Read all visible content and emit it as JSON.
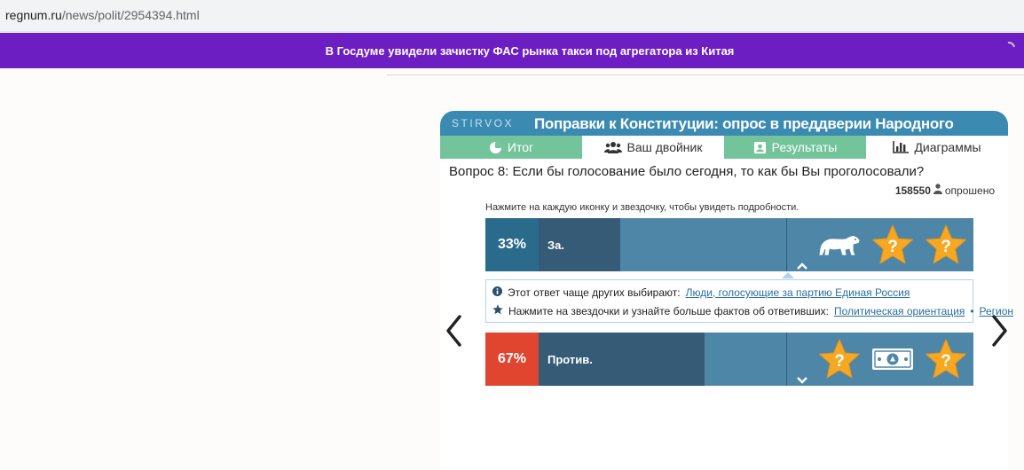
{
  "browser": {
    "url_host": "regnum.ru",
    "url_path": "/news/polit/2954394.html"
  },
  "ticker": {
    "text": "В Госдуме увидели зачистку ФАС рынка такси под агрегатора из Китая"
  },
  "widget": {
    "brand": "STIRVOX",
    "title": "Поправки к Конституции: опрос в преддверии Народного опроса",
    "tabs": [
      {
        "label": "Итог",
        "icon": "pie-chart-icon"
      },
      {
        "label": "Ваш двойник",
        "icon": "users-icon"
      },
      {
        "label": "Результаты",
        "icon": "id-card-icon"
      },
      {
        "label": "Диаграммы",
        "icon": "bar-chart-icon"
      }
    ],
    "question": "Вопрос 8: Если бы голосование было сегодня, то как бы Вы проголосовали?",
    "respondents": {
      "count": "158550",
      "label": "опрошено"
    },
    "hint": "Нажмите на каждую иконку и звездочку, чтобы увидеть подробности.",
    "answers": [
      {
        "percent": "33%",
        "label": "За.",
        "fill_fraction": 0.33,
        "color": "#2a6b8c",
        "icons": [
          "polar-bear-icon",
          "star-question-icon",
          "star-question-icon"
        ]
      },
      {
        "percent": "67%",
        "label": "Против.",
        "fill_fraction": 0.67,
        "color": "#e0462f",
        "icons": [
          "star-question-icon",
          "banknote-icon",
          "star-question-icon"
        ]
      }
    ],
    "info": {
      "line1_prefix": "Этот ответ чаще других выбирают:",
      "line1_link": "Люди, голосующие за партию Единая Россия",
      "line2_prefix": "Нажмите на звездочки и узнайте больше фактов об ответивших:",
      "line2_link1": "Политическая ориентация",
      "line2_sep": "•",
      "line2_link2": "Регион"
    },
    "nav": {
      "prev_icon": "chevron-left-icon",
      "next_icon": "chevron-right-icon"
    }
  },
  "colors": {
    "ticker": "#6c1ec3",
    "header": "#3b8ab2",
    "tab_green": "#74c49b",
    "bar": "#4e86a8",
    "bar_fill": "#355b76",
    "star": "#f7a823"
  }
}
